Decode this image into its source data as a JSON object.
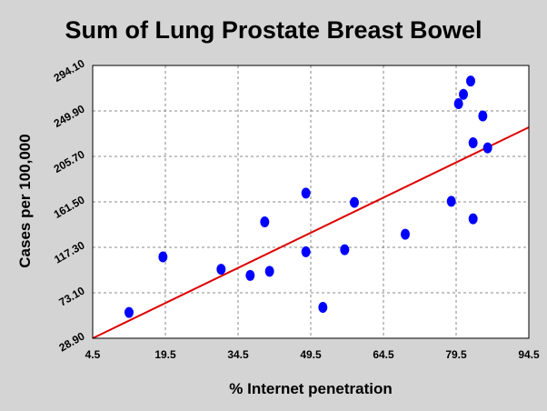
{
  "chart_data": {
    "type": "scatter",
    "title": "Sum of Lung Prostate Breast Bowel",
    "xlabel": "% Internet penetration",
    "ylabel": "Cases per 100,000",
    "xlim": [
      4.5,
      94.5
    ],
    "ylim": [
      28.9,
      294.1
    ],
    "x_ticks": [
      "4.5",
      "19.5",
      "34.5",
      "49.5",
      "64.5",
      "79.5",
      "94.5"
    ],
    "y_ticks": [
      "28.90",
      "73.10",
      "117.30",
      "161.50",
      "205.70",
      "249.90",
      "294.10"
    ],
    "grid": true,
    "point_color": "#0000ff",
    "trend_color": "#dd0000",
    "points": [
      {
        "x": 12.0,
        "y": 54
      },
      {
        "x": 19.0,
        "y": 108
      },
      {
        "x": 31.0,
        "y": 96
      },
      {
        "x": 37.0,
        "y": 90
      },
      {
        "x": 40.0,
        "y": 142
      },
      {
        "x": 41.0,
        "y": 94
      },
      {
        "x": 48.5,
        "y": 113
      },
      {
        "x": 48.5,
        "y": 170
      },
      {
        "x": 52.0,
        "y": 59
      },
      {
        "x": 56.5,
        "y": 115
      },
      {
        "x": 58.5,
        "y": 161
      },
      {
        "x": 69.0,
        "y": 130
      },
      {
        "x": 78.5,
        "y": 162
      },
      {
        "x": 80.0,
        "y": 257
      },
      {
        "x": 81.0,
        "y": 266
      },
      {
        "x": 82.5,
        "y": 279
      },
      {
        "x": 83.0,
        "y": 145
      },
      {
        "x": 83.0,
        "y": 219
      },
      {
        "x": 85.0,
        "y": 245
      },
      {
        "x": 86.0,
        "y": 214
      }
    ],
    "trendline": {
      "x": [
        4.5,
        94.5
      ],
      "y": [
        28.9,
        234
      ]
    }
  }
}
